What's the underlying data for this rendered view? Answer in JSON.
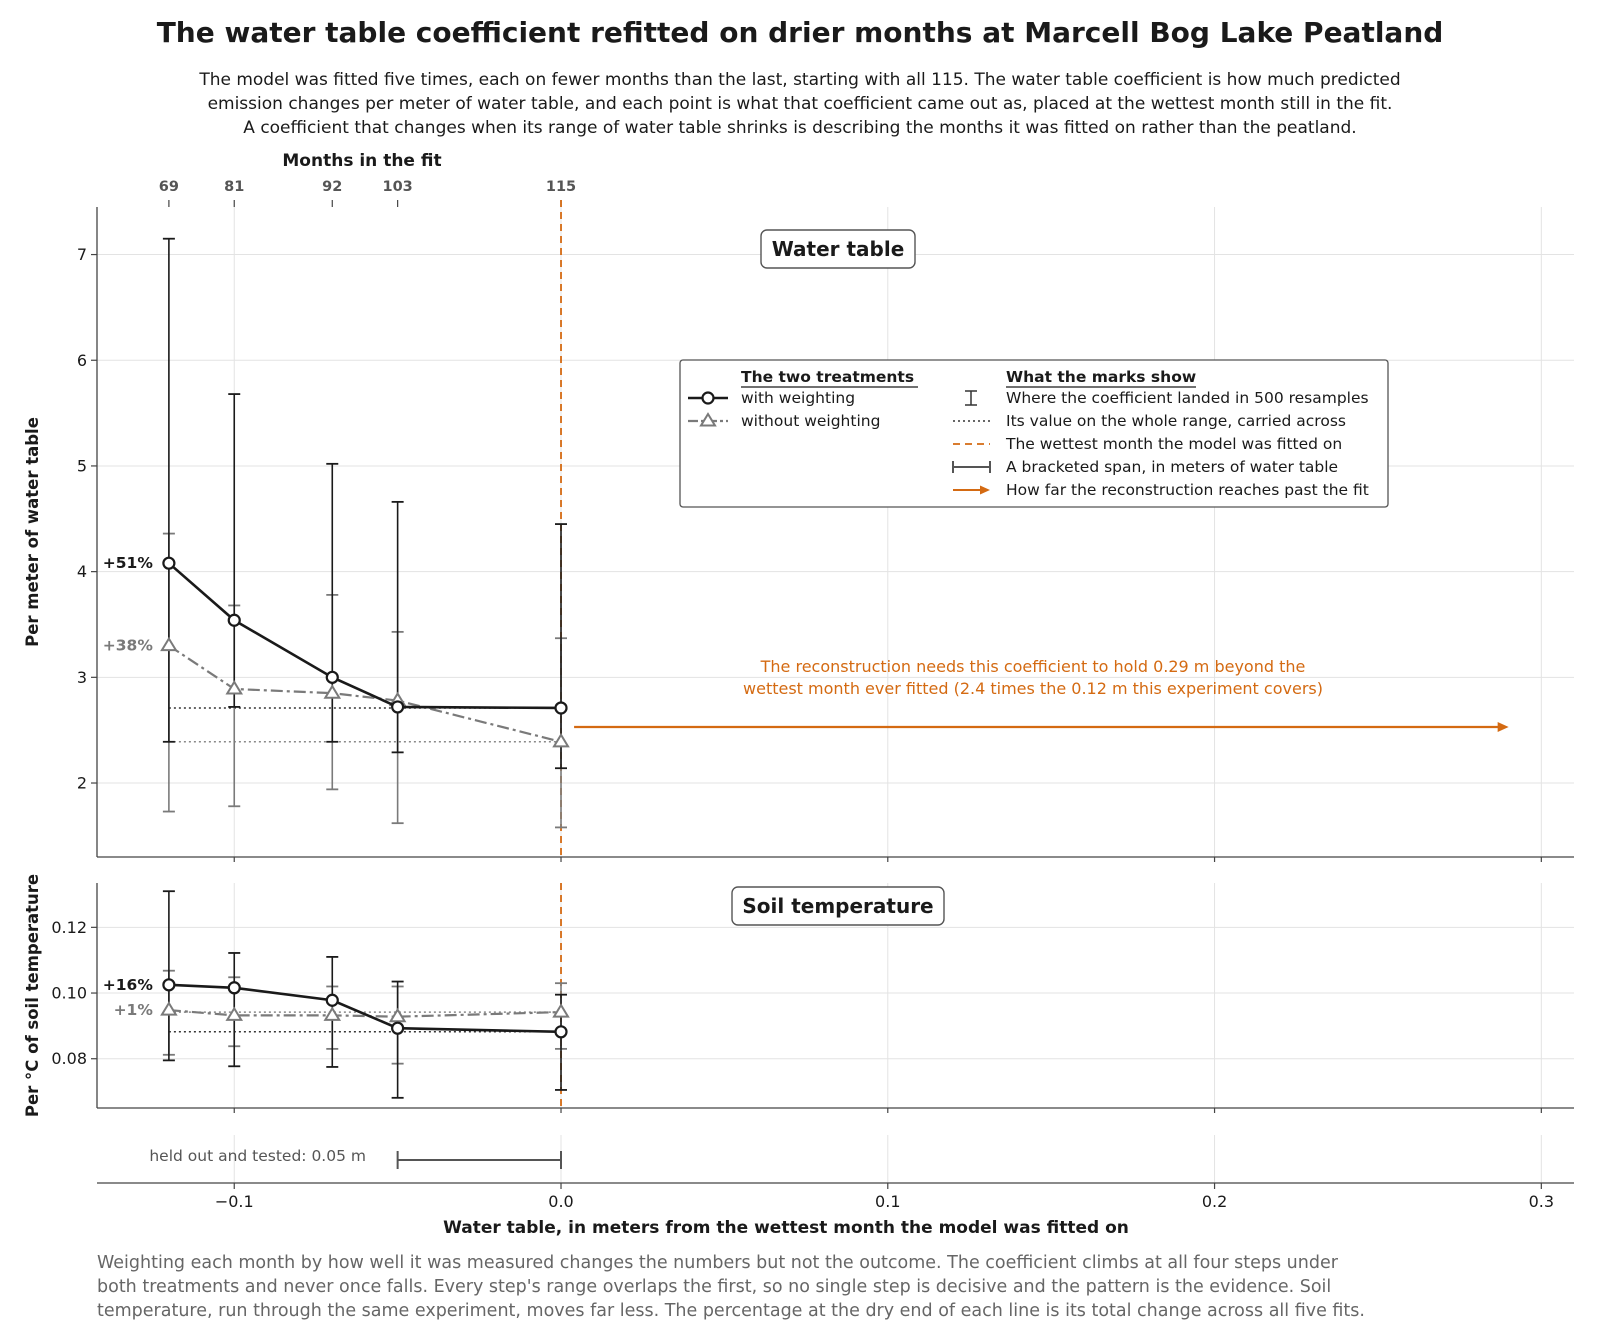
{
  "title": "The water table coefficient refitted on drier months at Marcell Bog Lake Peatland",
  "subtitle_lines": [
    "The model was fitted five times, each on fewer months than the last, starting with all 115. The water table coefficient is how much predicted",
    "emission changes per meter of water table, and each point is what that coefficient came out as, placed at the wettest month still in the fit.",
    "A coefficient that changes when its range of water table shrinks is describing the months it was fitted on rather than the peatland."
  ],
  "footnote_lines": [
    "Weighting each month by how well it was measured changes the numbers but not the outcome. The coefficient climbs at all four steps under",
    "both treatments and never once falls. Every step's range overlaps the first, so no single step is decisive and the pattern is the evidence. Soil",
    "temperature, run through the same experiment, moves far less. The percentage at the dry end of each line is its total change across all five fits."
  ],
  "colors": {
    "weighted": "#1a1a1a",
    "unweighted": "#7a7a7a",
    "accent": "#d46a12",
    "grid": "#e3e3e3",
    "axis": "#444444",
    "span": "#555555"
  },
  "chart_data": {
    "type": "line",
    "xlabel": "Water table, in meters from the wettest month the model was fitted on",
    "xlim": [
      -0.142,
      0.31
    ],
    "x_ticks": [
      -0.1,
      0.0,
      0.1,
      0.2,
      0.3
    ],
    "x_tick_labels": [
      "−0.1",
      "0.0",
      "0.1",
      "0.2",
      "0.3"
    ],
    "x": [
      -0.12,
      -0.1,
      -0.07,
      -0.05,
      0.0
    ],
    "top_axis": {
      "label": "Months in the fit",
      "ticks": [
        -0.12,
        -0.1,
        -0.07,
        -0.05,
        0.0
      ],
      "tick_labels": [
        "69",
        "81",
        "92",
        "103",
        "115"
      ]
    },
    "grid": true,
    "legend_position": "upper right",
    "panels": [
      {
        "name": "Water table",
        "ylabel": "Per meter of water table",
        "ylim": [
          1.3,
          7.45
        ],
        "y_ticks": [
          2,
          3,
          4,
          5,
          6,
          7
        ],
        "y_tick_labels": [
          "2",
          "3",
          "4",
          "5",
          "6",
          "7"
        ],
        "series": [
          {
            "name": "with weighting",
            "values": [
              4.08,
              3.54,
              3.0,
              2.72,
              2.71
            ],
            "lower": [
              2.39,
              2.72,
              2.39,
              2.29,
              2.14
            ],
            "upper": [
              7.15,
              5.68,
              5.02,
              4.66,
              4.45
            ],
            "whole_range_value": 2.71,
            "end_label": "+51%"
          },
          {
            "name": "without weighting",
            "values": [
              3.3,
              2.89,
              2.85,
              2.78,
              2.39
            ],
            "lower": [
              1.73,
              1.78,
              1.94,
              1.62,
              1.58
            ],
            "upper": [
              4.36,
              3.68,
              3.78,
              3.43,
              3.37
            ],
            "whole_range_value": 2.39,
            "end_label": "+38%"
          }
        ],
        "annotation": {
          "lines": [
            "The reconstruction needs this coefficient to hold 0.29 m beyond the",
            "wettest month ever fitted (2.4 times the 0.12 m this experiment covers)"
          ],
          "arrow_from": 0.004,
          "arrow_to": 0.29,
          "arrow_y": 2.53
        }
      },
      {
        "name": "Soil temperature",
        "ylabel": "Per °C of soil temperature",
        "ylim": [
          0.065,
          0.1335
        ],
        "y_ticks": [
          0.08,
          0.1,
          0.12
        ],
        "y_tick_labels": [
          "0.08",
          "0.10",
          "0.12"
        ],
        "series": [
          {
            "name": "with weighting",
            "values": [
              0.1025,
              0.1016,
              0.0978,
              0.0893,
              0.0882
            ],
            "lower": [
              0.0795,
              0.0777,
              0.0775,
              0.0681,
              0.0705
            ],
            "upper": [
              0.131,
              0.1122,
              0.111,
              0.1035,
              0.0995
            ],
            "whole_range_value": 0.0882,
            "end_label": "+16%"
          },
          {
            "name": "without weighting",
            "values": [
              0.0948,
              0.0932,
              0.0932,
              0.0928,
              0.0942
            ],
            "lower": [
              0.0812,
              0.0838,
              0.083,
              0.0785,
              0.083
            ],
            "upper": [
              0.1068,
              0.1048,
              0.102,
              0.102,
              0.103
            ],
            "whole_range_value": 0.0942,
            "end_label": "+1%"
          }
        ]
      }
    ],
    "span": {
      "label": "held out and tested: 0.05 m",
      "from": -0.05,
      "to": 0.0
    },
    "legend": {
      "treatments_title": "The two treatments",
      "treatments": [
        "with weighting",
        "without weighting"
      ],
      "marks_title": "What the marks show",
      "marks": [
        "Where the coefficient landed in 500 resamples",
        "Its value on the whole range, carried across",
        "The wettest month the model was fitted on",
        "A bracketed span, in meters of water table",
        "How far the reconstruction reaches past the fit"
      ]
    }
  }
}
